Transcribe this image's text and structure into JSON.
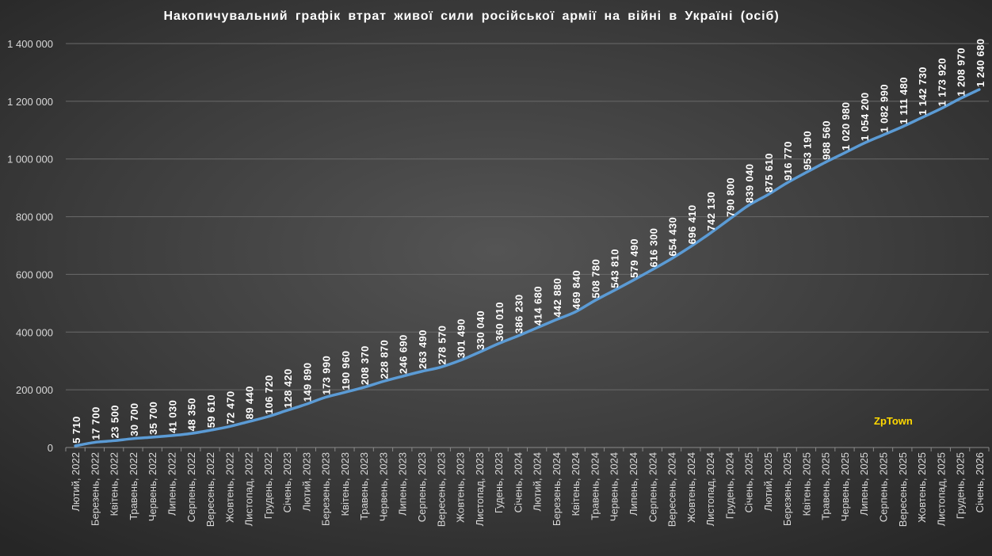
{
  "watermark": "ZpTown",
  "colors": {
    "line": "#5b9bd5",
    "text": "#d9d9d9",
    "label": "#ffffff",
    "grid": "#6a6a6a",
    "watermark": "#ffd800"
  },
  "chart_data": {
    "type": "line",
    "title": "Накопичувальний  графік  втрат  живої  сили  російської  армії  на  війні  в  Україні  (осіб)",
    "xlabel": "",
    "ylabel": "",
    "ylim": [
      0,
      1400000
    ],
    "yticks": [
      "0",
      "200 000",
      "400 000",
      "600 000",
      "800 000",
      "1 000 000",
      "1 200 000",
      "1 400 000"
    ],
    "grid": true,
    "legend": "none",
    "categories": [
      "Лютий, 2022",
      "Березень, 2022",
      "Квітень, 2022",
      "Травень, 2022",
      "Червень, 2022",
      "Липень, 2022",
      "Серпень, 2022",
      "Вересень, 2022",
      "Жовтень, 2022",
      "Листопад, 2022",
      "Грудень, 2022",
      "Січень, 2023",
      "Лютий, 2023",
      "Березень, 2023",
      "Квітень, 2023",
      "Травень, 2023",
      "Червень, 2023",
      "Липень, 2023",
      "Серпень, 2023",
      "Вересень, 2023",
      "Жовтень, 2023",
      "Листопад, 2023",
      "Гудень, 2023",
      "Січень, 2024",
      "Лютий, 2024",
      "Березень, 2024",
      "Квітень, 2024",
      "Травень, 2024",
      "Червень, 2024",
      "Липень, 2024",
      "Серпень, 2024",
      "Вересень, 2024",
      "Жовтень, 2024",
      "Листопад, 2024",
      "Грудень, 2024",
      "Січень, 2025",
      "Лютий, 2025",
      "Березень, 2025",
      "Квітень, 2025",
      "Травень, 2025",
      "Червень, 2025",
      "Липень, 2025",
      "Серпень, 2025",
      "Вересень, 2025",
      "Жовтень, 2025",
      "Листопад, 2025",
      "Грудень, 2025",
      "Січень, 2026"
    ],
    "series": [
      {
        "values": [
          5710,
          17700,
          23500,
          30700,
          35700,
          41030,
          48350,
          59610,
          72470,
          89440,
          106720,
          128420,
          149890,
          173990,
          190960,
          208370,
          228870,
          246690,
          263490,
          278570,
          301490,
          330040,
          360010,
          386230,
          414680,
          442880,
          469840,
          508780,
          543810,
          579490,
          616300,
          654430,
          696410,
          742130,
          790800,
          839040,
          875610,
          916770,
          953190,
          988560,
          1020980,
          1054200,
          1082990,
          1111480,
          1142730,
          1173920,
          1208970,
          1240680
        ],
        "labels": [
          "5 710",
          "17 700",
          "23 500",
          "30 700",
          "35 700",
          "41 030",
          "48 350",
          "59 610",
          "72 470",
          "89 440",
          "106 720",
          "128 420",
          "149 890",
          "173 990",
          "190 960",
          "208 370",
          "228 870",
          "246 690",
          "263 490",
          "278 570",
          "301 490",
          "330 040",
          "360 010",
          "386 230",
          "414 680",
          "442 880",
          "469 840",
          "508 780",
          "543 810",
          "579 490",
          "616 300",
          "654 430",
          "696 410",
          "742 130",
          "790 800",
          "839 040",
          "875 610",
          "916 770",
          "953 190",
          "988 560",
          "1 020 980",
          "1 054 200",
          "1 082 990",
          "1 111 480",
          "1 142 730",
          "1 173 920",
          "1 208 970",
          "1 240 680"
        ]
      }
    ]
  }
}
